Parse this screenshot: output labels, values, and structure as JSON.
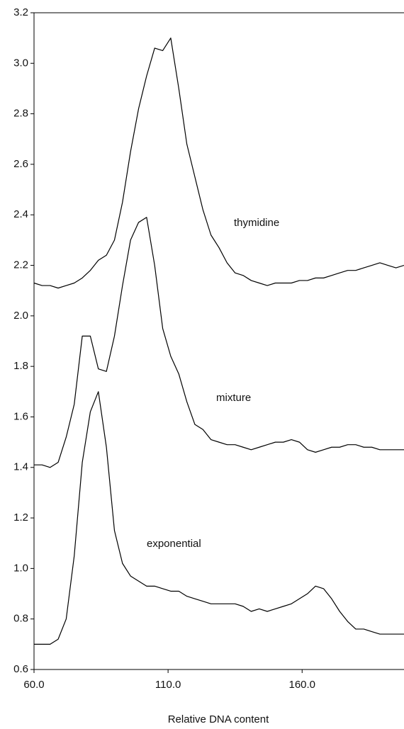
{
  "chart_data": {
    "type": "line",
    "x_label": "Relative DNA content",
    "x": [
      60,
      63,
      66,
      69,
      72,
      75,
      78,
      81,
      84,
      87,
      90,
      93,
      96,
      99,
      102,
      105,
      108,
      111,
      114,
      117,
      120,
      123,
      126,
      129,
      132,
      135,
      138,
      141,
      144,
      147,
      150,
      153,
      156,
      159,
      162,
      165,
      168,
      171,
      174,
      177,
      180,
      183,
      186,
      189,
      192,
      195,
      198
    ],
    "series": [
      {
        "name": "thymidine",
        "color": "#000000",
        "values": [
          2.13,
          2.12,
          2.12,
          2.11,
          2.12,
          2.13,
          2.15,
          2.18,
          2.22,
          2.24,
          2.3,
          2.45,
          2.65,
          2.82,
          2.95,
          3.06,
          3.05,
          3.1,
          2.9,
          2.68,
          2.55,
          2.42,
          2.32,
          2.27,
          2.21,
          2.17,
          2.16,
          2.14,
          2.13,
          2.12,
          2.13,
          2.13,
          2.13,
          2.14,
          2.14,
          2.15,
          2.15,
          2.16,
          2.17,
          2.18,
          2.18,
          2.19,
          2.2,
          2.21,
          2.2,
          2.19,
          2.2
        ]
      },
      {
        "name": "mixture",
        "color": "#000000",
        "values": [
          1.41,
          1.41,
          1.4,
          1.42,
          1.52,
          1.65,
          1.92,
          1.92,
          1.79,
          1.78,
          1.92,
          2.12,
          2.3,
          2.37,
          2.39,
          2.2,
          1.95,
          1.84,
          1.77,
          1.66,
          1.57,
          1.55,
          1.51,
          1.5,
          1.49,
          1.49,
          1.48,
          1.47,
          1.48,
          1.49,
          1.5,
          1.5,
          1.51,
          1.5,
          1.47,
          1.46,
          1.47,
          1.48,
          1.48,
          1.49,
          1.49,
          1.48,
          1.48,
          1.47,
          1.47,
          1.47,
          1.47
        ]
      },
      {
        "name": "exponential",
        "color": "#000000",
        "values": [
          0.7,
          0.7,
          0.7,
          0.72,
          0.8,
          1.05,
          1.42,
          1.62,
          1.7,
          1.48,
          1.15,
          1.02,
          0.97,
          0.95,
          0.93,
          0.93,
          0.92,
          0.91,
          0.91,
          0.89,
          0.88,
          0.87,
          0.86,
          0.86,
          0.86,
          0.86,
          0.85,
          0.83,
          0.84,
          0.83,
          0.84,
          0.85,
          0.86,
          0.88,
          0.9,
          0.93,
          0.92,
          0.88,
          0.83,
          0.79,
          0.76,
          0.76,
          0.75,
          0.74,
          0.74,
          0.74,
          0.74
        ]
      }
    ],
    "xlim": [
      60,
      198
    ],
    "xticks": [
      {
        "value": 60,
        "label": "60.0"
      },
      {
        "value": 110,
        "label": "110.0"
      },
      {
        "value": 160,
        "label": "160.0"
      }
    ],
    "ylim": [
      0.6,
      3.2
    ],
    "yticks": [
      0.6,
      0.8,
      {
        "value": 1,
        "label": "1.0"
      },
      1.2,
      1.4,
      1.6,
      1.8,
      {
        "value": 2,
        "label": "2.0"
      },
      2.2,
      2.4,
      2.6,
      2.8,
      {
        "value": 3,
        "label": "3.0"
      },
      3.2
    ],
    "grid": false
  }
}
